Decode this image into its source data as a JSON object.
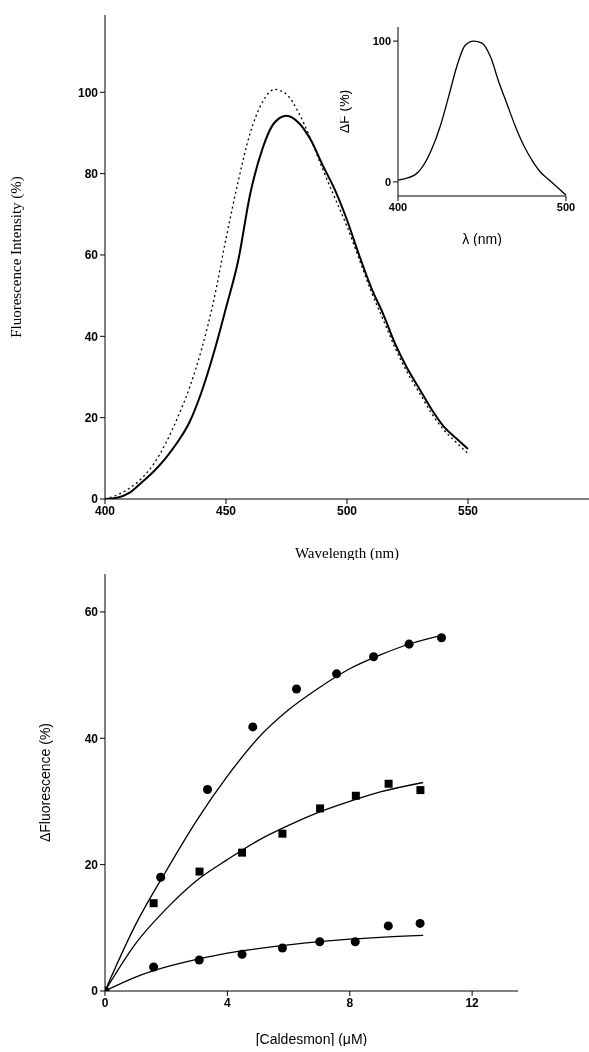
{
  "chart_data": [
    {
      "type": "line",
      "xlabel": "Wavelength (nm)",
      "ylabel": "Fluorescence Intensity (%)",
      "xlim": [
        400,
        600
      ],
      "ylim": [
        0,
        119
      ],
      "xticks": [
        400,
        450,
        500,
        550
      ],
      "yticks": [
        0,
        20,
        40,
        60,
        80,
        100
      ],
      "series": [
        {
          "color": "#000000",
          "line_style": "solid",
          "x": [
            400,
            405,
            410,
            415,
            420,
            425,
            430,
            435,
            440,
            445,
            450,
            455,
            460,
            465,
            470,
            475,
            480,
            485,
            490,
            495,
            500,
            505,
            510,
            515,
            520,
            525,
            530,
            535,
            540,
            545,
            550
          ],
          "values": [
            0,
            0.3,
            1.5,
            4,
            6.7,
            10,
            14,
            19,
            26.5,
            36,
            47,
            58.5,
            75,
            86,
            92.5,
            94.2,
            92.5,
            88.3,
            82,
            76,
            68.6,
            60,
            52,
            45.4,
            38,
            32,
            27,
            22,
            17.8,
            15,
            12.3
          ]
        },
        {
          "color": "#000000",
          "line_style": "dotted",
          "x": [
            400,
            405,
            410,
            415,
            420,
            425,
            430,
            435,
            440,
            445,
            450,
            455,
            460,
            465,
            470,
            475,
            480,
            485,
            490,
            495,
            500,
            505,
            510,
            515,
            520,
            525,
            530,
            535,
            540,
            545,
            550
          ],
          "values": [
            0,
            1,
            2.6,
            5,
            8.5,
            13.6,
            20,
            27.5,
            37,
            49,
            64,
            78,
            90,
            97.5,
            100.7,
            99.5,
            95,
            88.5,
            81,
            74,
            67,
            59,
            51,
            44,
            37,
            31,
            26,
            21,
            17,
            14,
            11.2
          ]
        }
      ]
    },
    {
      "type": "line",
      "xlabel": "λ (nm)",
      "ylabel": "ΔF (%)",
      "xlim": [
        400,
        500
      ],
      "ylim": [
        -10,
        110
      ],
      "xticks": [
        400,
        500
      ],
      "yticks": [
        0,
        100
      ],
      "series": [
        {
          "color": "#000000",
          "line_style": "solid",
          "x": [
            400,
            410,
            420,
            425,
            430,
            435,
            440,
            445,
            450,
            455,
            460,
            465,
            470,
            475,
            480,
            485,
            490,
            495,
            500
          ],
          "values": [
            1.3,
            5,
            23,
            39,
            60,
            82,
            97,
            100,
            98.6,
            89,
            71,
            55,
            39,
            25.5,
            15,
            6.7,
            1.3,
            -4,
            -9.4
          ]
        }
      ]
    },
    {
      "type": "scatter",
      "xlabel": "[Caldesmon] (μM)",
      "ylabel": "ΔFluorescence (%)",
      "xlim": [
        0,
        13.5
      ],
      "ylim": [
        0,
        66
      ],
      "xticks": [
        0,
        4,
        8,
        12
      ],
      "yticks": [
        0,
        20,
        40,
        60
      ],
      "series": [
        {
          "color": "#000000",
          "marker": "circle",
          "x": [
            1.82,
            3.35,
            4.83,
            6.26,
            7.57,
            8.78,
            9.94,
            11.0
          ],
          "values": [
            18.0,
            31.9,
            41.8,
            47.8,
            50.2,
            52.9,
            54.9,
            55.9
          ]
        },
        {
          "color": "#000000",
          "marker": "square",
          "x": [
            1.59,
            3.09,
            4.48,
            5.8,
            7.03,
            8.2,
            9.27,
            10.31
          ],
          "values": [
            13.9,
            18.9,
            21.9,
            24.9,
            28.9,
            30.9,
            32.8,
            31.8
          ]
        },
        {
          "color": "#000000",
          "marker": "circle",
          "x": [
            0,
            1.59,
            3.08,
            4.48,
            5.8,
            7.02,
            8.18,
            9.26,
            10.3
          ],
          "values": [
            0,
            3.8,
            4.9,
            5.8,
            6.8,
            7.8,
            7.8,
            10.3,
            10.7
          ]
        },
        {
          "type": "line",
          "color": "#000000",
          "line_style": "solid",
          "x": [
            0,
            1,
            2,
            3,
            4,
            5,
            6,
            7,
            8,
            9,
            10,
            11
          ],
          "values": [
            0,
            10.5,
            19,
            27,
            34,
            40,
            44.5,
            48,
            51,
            53.2,
            55,
            56.3
          ]
        },
        {
          "type": "line",
          "color": "#000000",
          "line_style": "solid",
          "x": [
            0,
            1,
            2,
            3,
            4,
            5,
            6,
            7,
            8,
            9,
            10.4
          ],
          "values": [
            0,
            7.5,
            13,
            17.5,
            20.8,
            23.8,
            26.2,
            28.3,
            30,
            31.5,
            33
          ]
        },
        {
          "type": "line",
          "color": "#000000",
          "line_style": "solid",
          "x": [
            0,
            1,
            2,
            3,
            4,
            5,
            6,
            7,
            8,
            9,
            10.4
          ],
          "values": [
            0,
            2.2,
            3.8,
            5,
            6,
            6.7,
            7.3,
            7.8,
            8.2,
            8.5,
            8.8
          ]
        }
      ]
    }
  ]
}
